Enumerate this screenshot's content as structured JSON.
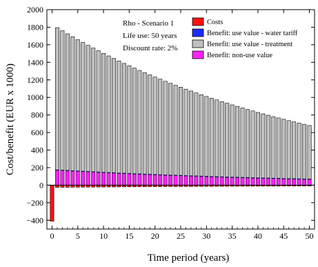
{
  "chart_data": {
    "type": "bar",
    "stacked": true,
    "title": "",
    "xlabel": "Time period (years)",
    "ylabel": "Cost/benefit (EUR x 1000)",
    "xlim": [
      -1,
      51
    ],
    "ylim": [
      -500,
      2000
    ],
    "xticks": [
      0,
      5,
      10,
      15,
      20,
      25,
      30,
      35,
      40,
      45,
      50
    ],
    "yticks": [
      -400,
      -200,
      0,
      200,
      400,
      600,
      800,
      1000,
      1200,
      1400,
      1600,
      1800,
      2000
    ],
    "grid": false,
    "legend_position": "top-right",
    "annotation": [
      "Rho - Scenario 1",
      "Life use: 50 years",
      "Discount rate: 2%"
    ],
    "colors": {
      "costs": "#ff1111",
      "water_tariff": "#1f2bff",
      "treatment": "#c0c0c0",
      "non_use": "#ff22ff"
    },
    "series": [
      {
        "key": "costs",
        "name": "Costs",
        "color": "#ff1111",
        "rule": "initial -410 at year 0, then annual operating cost -25 decreasing over time"
      },
      {
        "key": "water_tariff",
        "name": "Benefit: use value - water tariff",
        "color": "#1f2bff"
      },
      {
        "key": "treatment",
        "name": "Benefit: use value - treatment",
        "color": "#c0c0c0"
      },
      {
        "key": "non_use",
        "name": "Benefit: non-use value",
        "color": "#ff22ff"
      }
    ],
    "x": [
      0,
      1,
      2,
      3,
      4,
      5,
      6,
      7,
      8,
      9,
      10,
      11,
      12,
      13,
      14,
      15,
      16,
      17,
      18,
      19,
      20,
      21,
      22,
      23,
      24,
      25,
      26,
      27,
      28,
      29,
      30,
      31,
      32,
      33,
      34,
      35,
      36,
      37,
      38,
      39,
      40,
      41,
      42,
      43,
      44,
      45,
      46,
      47,
      48,
      49,
      50
    ],
    "costs": [
      -410,
      -25,
      -24.5,
      -24,
      -23.5,
      -23,
      -22.5,
      -22,
      -21.6,
      -21.2,
      -20.8,
      -20.4,
      -20,
      -19.6,
      -19.2,
      -18.8,
      -18.4,
      -18,
      -17.7,
      -17.4,
      -17,
      -16.7,
      -16.4,
      -16,
      -15.7,
      -15.4,
      -15.1,
      -14.8,
      -14.5,
      -14.2,
      -14,
      -13.7,
      -13.4,
      -13.2,
      -12.9,
      -12.7,
      -12.4,
      -12.2,
      -12,
      -11.7,
      -11.5,
      -11.3,
      -11,
      -10.8,
      -10.6,
      -10.4,
      -10.2,
      -10,
      -9.8,
      -9.6,
      -9.4
    ],
    "water_tariff": [
      0,
      5,
      5,
      5,
      5,
      5,
      5,
      5,
      5,
      5,
      5,
      5,
      5,
      5,
      5,
      5,
      5,
      5,
      5,
      5,
      5,
      5,
      5,
      5,
      5,
      5,
      5,
      5,
      5,
      5,
      5,
      5,
      5,
      5,
      5,
      5,
      5,
      5,
      5,
      5,
      5,
      5,
      5,
      5,
      5,
      5,
      5,
      5,
      5,
      5,
      5
    ],
    "non_use": [
      0,
      170,
      167,
      164,
      161,
      158,
      155,
      152,
      149,
      146,
      143,
      140,
      138,
      135,
      132,
      130,
      127,
      125,
      122,
      120,
      118,
      115,
      113,
      111,
      109,
      107,
      105,
      103,
      101,
      99,
      97,
      95,
      93,
      91,
      89,
      88,
      86,
      84,
      83,
      81,
      80,
      78,
      77,
      75,
      74,
      72,
      71,
      70,
      68,
      67,
      66
    ],
    "total_benefit": [
      0,
      1795,
      1760,
      1725,
      1692,
      1658,
      1626,
      1594,
      1563,
      1532,
      1502,
      1473,
      1444,
      1415,
      1388,
      1360,
      1334,
      1308,
      1282,
      1257,
      1232,
      1208,
      1184,
      1161,
      1138,
      1116,
      1094,
      1073,
      1052,
      1031,
      1011,
      991,
      972,
      953,
      934,
      915,
      898,
      880,
      863,
      846,
      829,
      813,
      797,
      781,
      766,
      751,
      736,
      722,
      707,
      694,
      680
    ]
  }
}
